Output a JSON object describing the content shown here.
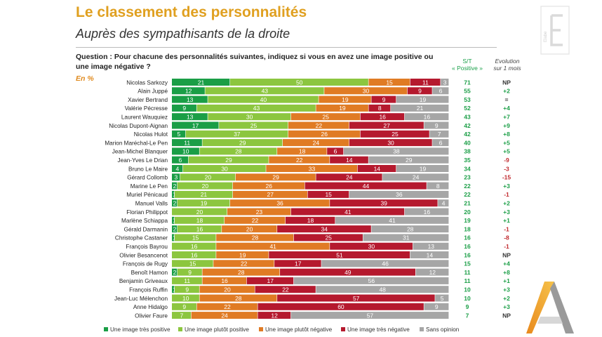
{
  "header": {
    "title": "Le classement des personnalités",
    "subtitle": "Auprès des sympathisants de la droite",
    "question": "Question : Pour chacune des personnalités suivantes, indiquez si vous en avez une image positive ou une image négative ?",
    "unit": "En %",
    "col_st_1": "S/T",
    "col_st_2": "« Positive »",
    "col_evo_1": "Evolution",
    "col_evo_2": "sur 1 mois"
  },
  "logo": {
    "watermark_text": "Elabe"
  },
  "colors": {
    "tres_positive": "#1a9e46",
    "plutot_positive": "#8cc63f",
    "plutot_negative": "#e07b24",
    "tres_negative": "#b5192e",
    "sans_opinion": "#a6a6a6",
    "st_text": "#1a9e46",
    "evo_positive": "#1a9e46",
    "evo_negative": "#c0282d",
    "evo_neutral": "#333333"
  },
  "chart_data": {
    "type": "bar",
    "orientation": "horizontal",
    "stacked": true,
    "percent_scale": [
      0,
      100
    ],
    "categories": [
      "Nicolas Sarkozy",
      "Alain Juppé",
      "Xavier Bertrand",
      "Valérie Pécresse",
      "Laurent Wauquiez",
      "Nicolas Dupont-Aignan",
      "Nicolas Hulot",
      "Marion Maréchal-Le Pen",
      "Jean-Michel Blanquer",
      "Jean-Yves Le Drian",
      "Bruno Le Maire",
      "Gérard Collomb",
      "Marine Le Pen",
      "Muriel Pénicaud",
      "Manuel Valls",
      "Florian Philippot",
      "Marlène Schiappa",
      "Gérald Darmanin",
      "Christophe Castaner",
      "François Bayrou",
      "Olivier Besancenot",
      "François de Rugy",
      "Benoît Hamon",
      "Benjamin Griveaux",
      "François Ruffin",
      "Jean-Luc Mélenchon",
      "Anne Hidalgo",
      "Olivier Faure"
    ],
    "series": [
      {
        "name": "Une image très positive",
        "values": [
          21,
          12,
          13,
          9,
          13,
          17,
          5,
          11,
          10,
          6,
          4,
          3,
          2,
          1,
          2,
          0,
          1,
          2,
          1,
          0,
          0,
          0,
          2,
          0,
          1,
          0,
          0,
          0
        ]
      },
      {
        "name": "Une image plutôt positive",
        "values": [
          50,
          43,
          40,
          43,
          30,
          25,
          37,
          29,
          28,
          29,
          30,
          20,
          20,
          21,
          19,
          20,
          18,
          16,
          15,
          16,
          16,
          15,
          9,
          11,
          9,
          10,
          9,
          7
        ]
      },
      {
        "name": "Une image plutôt négative",
        "values": [
          15,
          30,
          19,
          19,
          25,
          22,
          26,
          24,
          18,
          22,
          33,
          29,
          26,
          27,
          36,
          23,
          22,
          20,
          28,
          41,
          19,
          22,
          28,
          16,
          20,
          28,
          22,
          24
        ]
      },
      {
        "name": "Une image très négative",
        "values": [
          11,
          9,
          9,
          8,
          16,
          27,
          25,
          30,
          6,
          14,
          14,
          24,
          44,
          15,
          39,
          41,
          18,
          34,
          25,
          30,
          51,
          17,
          49,
          17,
          22,
          57,
          60,
          12
        ]
      },
      {
        "name": "Sans opinion",
        "values": [
          3,
          6,
          19,
          21,
          16,
          9,
          7,
          6,
          38,
          29,
          19,
          24,
          8,
          36,
          4,
          16,
          41,
          28,
          31,
          13,
          14,
          46,
          12,
          56,
          48,
          5,
          9,
          57
        ]
      }
    ],
    "st_positive": [
      "71",
      "55",
      "53",
      "52",
      "43",
      "42",
      "42",
      "40",
      "38",
      "35",
      "34",
      "23",
      "22",
      "22",
      "21",
      "20",
      "19",
      "18",
      "16",
      "16",
      "16",
      "15",
      "11",
      "11",
      "10",
      "10",
      "9",
      "7"
    ],
    "evolution": [
      "NP",
      "+2",
      "=",
      "+4",
      "+7",
      "+9",
      "+8",
      "+5",
      "+5",
      "-9",
      "-3",
      "-15",
      "+3",
      "-1",
      "+2",
      "+3",
      "+1",
      "-1",
      "-8",
      "-1",
      "NP",
      "+4",
      "+8",
      "+1",
      "+3",
      "+2",
      "+3",
      "NP"
    ],
    "legend_position": "bottom"
  }
}
